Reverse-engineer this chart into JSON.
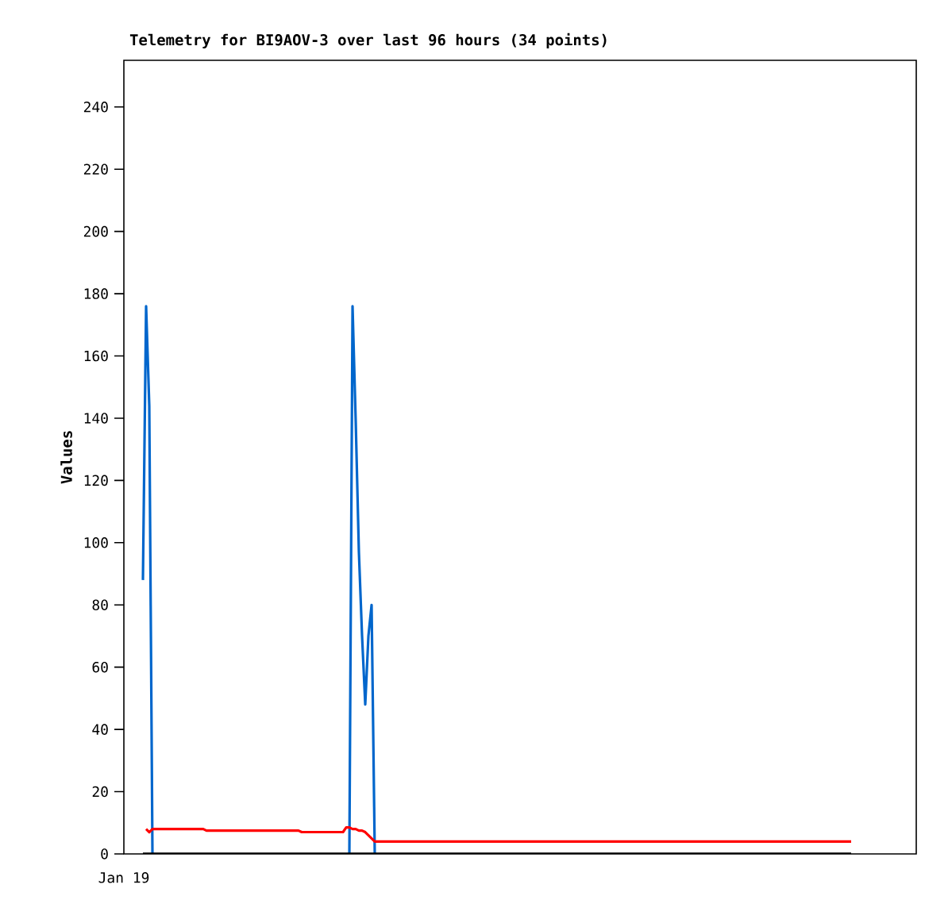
{
  "chart_data": {
    "type": "line",
    "title": "Telemetry for BI9AOV-3 over last 96 hours (34 points)",
    "ylabel": "Values",
    "annotations": [
      "Jan 19"
    ],
    "categories": [
      null,
      null,
      null,
      null,
      null,
      null,
      null,
      null,
      null,
      null,
      null,
      null,
      null,
      null,
      null,
      null,
      null,
      null,
      null,
      null,
      null,
      null,
      null,
      null,
      null,
      null,
      null,
      null,
      null,
      null,
      null,
      null,
      null,
      null,
      null,
      null,
      null,
      null,
      null,
      null,
      null,
      null,
      null,
      null,
      null,
      null,
      null,
      null,
      null,
      null,
      null,
      null,
      null,
      null,
      null,
      null,
      null,
      null,
      null,
      null,
      null,
      null,
      null,
      null,
      null,
      null,
      null,
      null,
      null,
      null,
      null,
      null,
      null,
      null,
      null,
      null,
      null,
      null,
      null,
      null,
      null,
      null,
      null,
      null,
      null,
      null,
      null,
      null,
      null,
      null,
      null,
      null,
      null,
      null,
      null,
      null,
      null,
      null,
      null,
      null,
      null,
      null,
      null,
      null,
      null,
      null,
      null,
      null,
      null,
      null,
      null,
      null,
      null,
      null,
      null,
      null,
      null,
      null,
      null,
      null,
      null,
      null,
      null,
      null,
      null,
      null,
      null,
      null,
      null,
      null,
      null,
      null,
      null,
      null,
      null,
      null,
      null,
      null,
      null,
      null,
      null,
      null,
      null,
      null,
      null,
      null,
      null,
      null,
      null,
      null,
      null,
      null,
      null,
      null,
      null,
      null,
      null,
      null,
      null,
      null,
      null,
      null,
      null,
      null,
      null,
      null,
      null,
      null,
      null,
      null,
      null,
      null,
      null,
      null,
      null,
      null,
      null,
      null,
      null,
      null,
      null,
      null,
      null,
      null,
      null,
      null,
      null,
      null,
      null,
      null,
      null,
      null,
      null,
      null,
      null,
      null,
      null,
      null,
      null,
      null,
      null,
      null,
      null,
      null,
      null,
      null,
      null,
      null,
      null,
      null,
      null,
      null,
      null,
      null,
      null,
      null,
      null,
      null,
      null,
      null,
      null,
      null,
      null,
      null
    ],
    "series": [
      {
        "color": "#0066cc",
        "values": [
          88,
          176,
          144,
          0,
          null,
          null,
          null,
          null,
          null,
          null,
          null,
          null,
          null,
          null,
          null,
          null,
          null,
          null,
          null,
          null,
          null,
          null,
          null,
          null,
          null,
          null,
          null,
          null,
          null,
          null,
          null,
          null,
          null,
          null,
          null,
          null,
          null,
          null,
          null,
          null,
          null,
          null,
          null,
          null,
          null,
          null,
          null,
          null,
          null,
          null,
          null,
          null,
          null,
          null,
          null,
          null,
          null,
          null,
          null,
          null,
          null,
          null,
          null,
          null,
          null,
          0,
          176,
          139,
          97,
          70,
          48,
          70,
          80,
          0,
          null,
          null,
          null,
          null,
          null,
          null,
          null,
          null,
          null,
          null,
          null,
          null,
          null,
          null,
          null,
          null,
          null,
          null,
          null,
          null,
          null,
          null,
          null,
          null,
          null,
          null,
          null,
          null,
          null,
          null,
          null,
          null,
          null,
          null,
          null,
          null,
          null,
          null,
          null,
          null,
          null,
          null,
          null,
          null,
          null,
          null,
          null,
          null,
          null,
          null,
          null,
          null,
          null,
          null,
          null,
          null,
          null,
          null,
          null,
          null,
          null,
          null,
          null,
          null,
          null,
          null,
          null,
          null,
          null,
          null,
          null,
          null,
          null,
          null,
          null,
          null,
          null,
          null,
          null,
          null,
          null,
          null,
          null,
          null,
          null,
          null,
          null,
          null,
          null,
          null,
          null,
          null,
          null,
          null,
          null,
          null,
          null,
          null,
          null,
          null,
          null,
          null,
          null,
          null,
          null,
          null,
          null,
          null,
          null,
          null,
          null,
          null,
          null,
          null,
          null,
          null,
          null,
          null,
          null,
          null,
          null,
          null,
          null,
          null,
          null,
          null,
          null,
          null,
          null,
          null,
          null,
          null,
          null,
          null,
          null,
          null,
          null,
          null,
          null,
          null,
          null,
          null,
          null,
          null,
          null,
          null,
          null,
          null,
          null,
          null
        ]
      },
      {
        "color": "#ff0000",
        "values": [
          null,
          8,
          7,
          8,
          8,
          8,
          8,
          8,
          8,
          8,
          8,
          8,
          8,
          8,
          8,
          8,
          8,
          8,
          8,
          8,
          7.5,
          7.5,
          7.5,
          7.5,
          7.5,
          7.5,
          7.5,
          7.5,
          7.5,
          7.5,
          7.5,
          7.5,
          7.5,
          7.5,
          7.5,
          7.5,
          7.5,
          7.5,
          7.5,
          7.5,
          7.5,
          7.5,
          7.5,
          7.5,
          7.5,
          7.5,
          7.5,
          7.5,
          7.5,
          7.5,
          7,
          7,
          7,
          7,
          7,
          7,
          7,
          7,
          7,
          7,
          7,
          7,
          7,
          7,
          8.5,
          8.5,
          8,
          8,
          7.5,
          7.5,
          7,
          6,
          5,
          4,
          4,
          4,
          4,
          4,
          4,
          4,
          4,
          4,
          4,
          4,
          4,
          4,
          4,
          4,
          4,
          4,
          4,
          4,
          4,
          4,
          4,
          4,
          4,
          4,
          4,
          4,
          4,
          4,
          4,
          4,
          4,
          4,
          4,
          4,
          4,
          4,
          4,
          4,
          4,
          4,
          4,
          4,
          4,
          4,
          4,
          4,
          4,
          4,
          4,
          4,
          4,
          4,
          4,
          4,
          4,
          4,
          4,
          4,
          4,
          4,
          4,
          4,
          4,
          4,
          4,
          4,
          4,
          4,
          4,
          4,
          4,
          4,
          4,
          4,
          4,
          4,
          4,
          4,
          4,
          4,
          4,
          4,
          4,
          4,
          4,
          4,
          4,
          4,
          4,
          4,
          4,
          4,
          4,
          4,
          4,
          4,
          4,
          4,
          4,
          4,
          4,
          4,
          4,
          4,
          4,
          4,
          4,
          4,
          4,
          4,
          4,
          4,
          4,
          4,
          4,
          4,
          4,
          4,
          4,
          4,
          4,
          4,
          4,
          4,
          4,
          4,
          4,
          4,
          4,
          4,
          4,
          4,
          4,
          4,
          4,
          4,
          4,
          4,
          4,
          4,
          4,
          4,
          4,
          4,
          4,
          4,
          4,
          4,
          4,
          4
        ]
      },
      {
        "color": "#000000",
        "values": [
          0,
          0,
          0,
          0,
          0,
          0,
          0,
          0,
          0,
          0,
          0,
          0,
          0,
          0,
          0,
          0,
          0,
          0,
          0,
          0,
          0,
          0,
          0,
          0,
          0,
          0,
          0,
          0,
          0,
          0,
          0,
          0,
          0,
          0,
          0,
          0,
          0,
          0,
          0,
          0,
          0,
          0,
          0,
          0,
          0,
          0,
          0,
          0,
          0,
          0,
          0,
          0,
          0,
          0,
          0,
          0,
          0,
          0,
          0,
          0,
          0,
          0,
          0,
          0,
          0,
          0,
          0,
          0,
          0,
          0,
          0,
          0,
          0,
          0,
          0,
          0,
          0,
          0,
          0,
          0,
          0,
          0,
          0,
          0,
          0,
          0,
          0,
          0,
          0,
          0,
          0,
          0,
          0,
          0,
          0,
          0,
          0,
          0,
          0,
          0,
          0,
          0,
          0,
          0,
          0,
          0,
          0,
          0,
          0,
          0,
          0,
          0,
          0,
          0,
          0,
          0,
          0,
          0,
          0,
          0,
          0,
          0,
          0,
          0,
          0,
          0,
          0,
          0,
          0,
          0,
          0,
          0,
          0,
          0,
          0,
          0,
          0,
          0,
          0,
          0,
          0,
          0,
          0,
          0,
          0,
          0,
          0,
          0,
          0,
          0,
          0,
          0,
          0,
          0,
          0,
          0,
          0,
          0,
          0,
          0,
          0,
          0,
          0,
          0,
          0,
          0,
          0,
          0,
          0,
          0,
          0,
          0,
          0,
          0,
          0,
          0,
          0,
          0,
          0,
          0,
          0,
          0,
          0,
          0,
          0,
          0,
          0,
          0,
          0,
          0,
          0,
          0,
          0,
          0,
          0,
          0,
          0,
          0,
          0,
          0,
          0,
          0,
          0,
          0,
          0,
          0,
          0,
          0,
          0,
          0,
          0,
          0,
          0,
          0,
          0,
          0,
          0,
          0,
          0,
          0,
          0,
          0,
          0,
          0
        ]
      }
    ],
    "ylim": [
      0,
      255
    ],
    "yticks": [
      0,
      20,
      40,
      60,
      80,
      100,
      120,
      140,
      160,
      180,
      200,
      220,
      240
    ]
  }
}
